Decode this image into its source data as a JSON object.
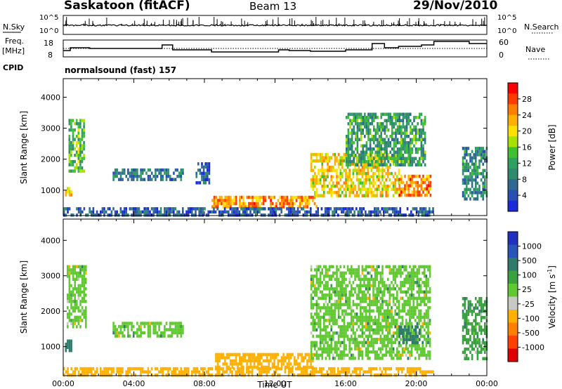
{
  "header": {
    "station": "Saskatoon (fitACF)",
    "beam": "Beam 13",
    "date": "29/Nov/2010"
  },
  "noise_panel": {
    "left_label": "N.Sky",
    "right_label": "N.Search",
    "left_ticks": [
      "10^5",
      "10^0"
    ],
    "right_ticks": [
      "10^5",
      "10^0"
    ]
  },
  "freq_panel": {
    "left_label": "Freq.",
    "left_unit": "[MHz]",
    "left_ticks": [
      "18",
      "8"
    ],
    "right_label": "Nave",
    "right_ticks": [
      "60",
      "0"
    ]
  },
  "cpid": {
    "label": "CPID",
    "text": "normalsound (fast) 157"
  },
  "power_colorbar": {
    "label": "Power [dB]",
    "ticks": [
      "28",
      "24",
      "20",
      "16",
      "12",
      "8",
      "4"
    ],
    "colors": [
      "#ff0000",
      "#ff3c00",
      "#ff8000",
      "#ffb000",
      "#ffe000",
      "#a8e000",
      "#40c030",
      "#30a060",
      "#2f8a6e",
      "#2f6890",
      "#2a4fb0",
      "#1a2ad8"
    ]
  },
  "velocity_colorbar": {
    "label_main": "Velocity [m s",
    "label_sup": "-1",
    "label_end": "]",
    "ticks": [
      "1000",
      "500",
      "100",
      "25",
      "-25",
      "-100",
      "-500",
      "-1000"
    ],
    "colors": [
      "#2030c0",
      "#2a55b8",
      "#2f7a6a",
      "#3aa040",
      "#60c830",
      "#c8c8c4",
      "#ffb000",
      "#ff8000",
      "#ff4000",
      "#e00000"
    ]
  },
  "chart_data": [
    {
      "type": "heatmap",
      "name_ref": "power",
      "ylabel": "Slant Range [km]",
      "x_range": [
        0,
        24
      ],
      "y_range": [
        180,
        4600
      ],
      "y_ticks": [
        1000,
        2000,
        3000,
        4000
      ],
      "y_tick_labels": [
        "1000",
        "2000",
        "3000",
        "4000"
      ],
      "bands": [
        {
          "t0": 8.4,
          "t1": 14.3,
          "r0": 450,
          "r1": 820,
          "level": 24
        },
        {
          "t0": 14.0,
          "t1": 19.0,
          "r0": 800,
          "r1": 2200,
          "level": 20
        },
        {
          "t0": 19.0,
          "t1": 20.8,
          "r0": 800,
          "r1": 1500,
          "level": 24
        },
        {
          "t0": 0.1,
          "t1": 0.5,
          "r0": 850,
          "r1": 1100,
          "level": 22
        },
        {
          "t0": 2.8,
          "t1": 6.8,
          "r0": 1300,
          "r1": 1700,
          "level": 8
        },
        {
          "t0": 7.5,
          "t1": 8.3,
          "r0": 1200,
          "r1": 1900,
          "level": 6
        },
        {
          "t0": 0.0,
          "t1": 21.0,
          "r0": 180,
          "r1": 450,
          "level": 6
        },
        {
          "t0": 0.3,
          "t1": 1.2,
          "r0": 1600,
          "r1": 3300,
          "level": 14
        },
        {
          "t0": 16.0,
          "t1": 20.5,
          "r0": 1800,
          "r1": 3500,
          "level": 12
        },
        {
          "t0": 22.6,
          "t1": 24.0,
          "r0": 700,
          "r1": 2400,
          "level": 10
        }
      ]
    },
    {
      "type": "heatmap",
      "name_ref": "velocity",
      "ylabel": "Slant Range [km]",
      "xlabel": "Time UT",
      "x_range": [
        0,
        24
      ],
      "y_range": [
        180,
        4600
      ],
      "y_ticks": [
        1000,
        2000,
        3000,
        4000
      ],
      "y_tick_labels": [
        "1000",
        "2000",
        "3000",
        "4000"
      ],
      "x_ticks": [
        0,
        4,
        8,
        12,
        16,
        20,
        24
      ],
      "x_tick_labels": [
        "00:00",
        "04:00",
        "08:00",
        "12:00",
        "16:00",
        "20:00",
        "00:00"
      ],
      "bands": [
        {
          "t0": 8.6,
          "t1": 14.2,
          "r0": 380,
          "r1": 820,
          "vel": -150
        },
        {
          "t0": 14.0,
          "t1": 20.8,
          "r0": 700,
          "r1": 3300,
          "vel": 0
        },
        {
          "t0": 2.8,
          "t1": 6.8,
          "r0": 1300,
          "r1": 1700,
          "vel": 0
        },
        {
          "t0": 0.2,
          "t1": 1.3,
          "r0": 1600,
          "r1": 3300,
          "vel": 0
        },
        {
          "t0": 0.1,
          "t1": 0.5,
          "r0": 850,
          "r1": 1200,
          "vel": 80
        },
        {
          "t0": 19.0,
          "t1": 20.2,
          "r0": 1150,
          "r1": 1600,
          "vel": 80
        },
        {
          "t0": 0.0,
          "t1": 21.0,
          "r0": 180,
          "r1": 420,
          "vel": -150
        },
        {
          "t0": 22.6,
          "t1": 24.0,
          "r0": 700,
          "r1": 2400,
          "vel": 50
        }
      ]
    }
  ]
}
